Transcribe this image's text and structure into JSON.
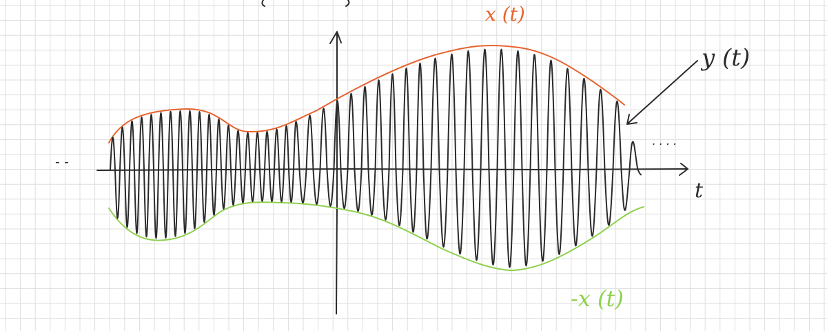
{
  "labels": {
    "envelope_upper": "x (t)",
    "signal": "y (t)",
    "envelope_lower": "-x (t)",
    "t_axis": "t",
    "left_dots": "- -",
    "right_dots": ". . . ."
  },
  "colors": {
    "background": "#ffffff",
    "grid": "#dedede",
    "axis": "#2a2a2a",
    "signal": "#2a2a2a",
    "upper_envelope": "#e8632e",
    "lower_envelope": "#8fd14f"
  }
}
